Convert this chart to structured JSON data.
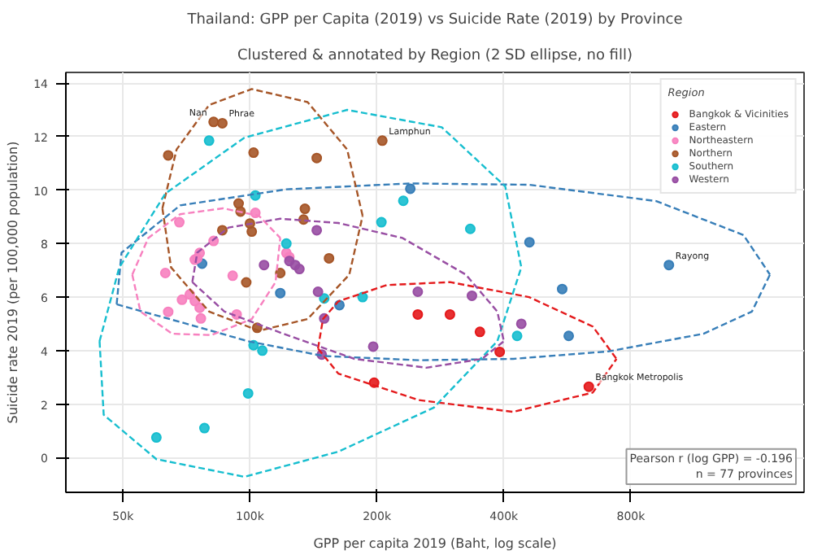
{
  "chart_data": {
    "type": "scatter",
    "marker": "circle",
    "title": "Thailand: GPP per Capita (2019) vs Suicide Rate (2019) by Province",
    "subtitle": "Clustered & annotated by Region (2 SD ellipse, no fill)",
    "xlabel": "GPP per capita 2019 (Baht, log scale)",
    "ylabel": "Suicide rate 2019 (per 100,000 population)",
    "legend_title": "Region",
    "legend": "top right",
    "grid": true,
    "log": "x",
    "xlim": [
      36600,
      2060000
    ],
    "ylim": [
      -1.3,
      14.4
    ],
    "xticks": [
      {
        "value": 50000,
        "label": "50k"
      },
      {
        "value": 100000,
        "label": "100k"
      },
      {
        "value": 200000,
        "label": "200k"
      },
      {
        "value": 400000,
        "label": "400k"
      },
      {
        "value": 800000,
        "label": "800k"
      }
    ],
    "yticks": [
      0,
      2,
      4,
      6,
      8,
      10,
      12,
      14
    ],
    "series": [
      {
        "name": "Bangkok & Vicinities",
        "color": "#e41a1c",
        "x": [
          250000,
          298000,
          351000,
          391000,
          636000,
          197000
        ],
        "values": [
          5.35,
          5.35,
          4.7,
          3.95,
          2.65,
          2.8
        ]
      },
      {
        "name": "Eastern",
        "color": "#377eb8",
        "x": [
          240000,
          460000,
          985000,
          77000,
          118000,
          163000,
          550000,
          570000
        ],
        "values": [
          10.05,
          8.05,
          7.2,
          7.25,
          6.15,
          5.7,
          6.3,
          4.55
        ]
      },
      {
        "name": "Northeastern",
        "color": "#f781bf",
        "x": [
          68000,
          63000,
          82000,
          74000,
          75000,
          76000,
          103000,
          91000,
          122000,
          124000,
          64000,
          69000,
          72000,
          74000,
          76000,
          76500,
          93000
        ],
        "values": [
          8.8,
          6.9,
          8.1,
          7.4,
          7.45,
          7.65,
          9.15,
          6.8,
          7.65,
          7.5,
          5.45,
          5.9,
          6.1,
          5.85,
          5.6,
          5.2,
          5.35
        ]
      },
      {
        "name": "Northern",
        "color": "#a65628",
        "x": [
          82000,
          86000,
          64000,
          102000,
          144000,
          206000,
          94000,
          95000,
          135000,
          134000,
          86000,
          100000,
          101000,
          154000,
          118000,
          98000,
          104000
        ],
        "values": [
          12.55,
          12.5,
          11.3,
          11.4,
          11.2,
          11.85,
          9.5,
          9.2,
          9.3,
          8.9,
          8.5,
          8.75,
          8.45,
          7.45,
          6.9,
          6.55,
          4.85
        ]
      },
      {
        "name": "Southern",
        "color": "#17becf",
        "x": [
          80000,
          103000,
          122000,
          205000,
          231000,
          333000,
          150000,
          185000,
          102000,
          107000,
          99000,
          78000,
          60000,
          430000
        ],
        "values": [
          11.85,
          9.8,
          8.0,
          8.8,
          9.6,
          8.55,
          5.95,
          6.0,
          4.2,
          4.0,
          2.4,
          1.1,
          0.75,
          4.55
        ]
      },
      {
        "name": "Western",
        "color": "#984ea3",
        "x": [
          144000,
          108000,
          124000,
          128000,
          131000,
          145000,
          150000,
          148000,
          196000,
          336000,
          440000,
          250000
        ],
        "values": [
          8.5,
          7.2,
          7.35,
          7.2,
          7.05,
          6.2,
          5.2,
          3.85,
          4.15,
          6.05,
          5.0,
          6.2
        ]
      },
      {
        "type": "line",
        "marker": "none",
        "line_style": "dashed",
        "color": "#e41a1c",
        "x": [
          145000,
          149000,
          162000,
          211000,
          298000,
          459000,
          650000,
          740000,
          null,
          145000,
          162000,
          251000,
          421000,
          650000,
          740000
        ],
        "values": [
          4.08,
          5.18,
          5.84,
          6.45,
          6.56,
          6.0,
          4.9,
          3.69,
          null,
          4.08,
          3.14,
          2.15,
          1.71,
          2.43,
          3.69
        ]
      },
      {
        "type": "line",
        "marker": "none",
        "line_style": "dashed",
        "color": "#377eb8",
        "x": [
          48300,
          49600,
          68300,
          122000,
          240000,
          459000,
          919000,
          1480000,
          1710000,
          null,
          48300,
          68300,
          99000,
          149000,
          251000,
          421000,
          708000,
          1190000,
          1550000,
          1710000
        ],
        "values": [
          5.73,
          7.66,
          9.43,
          10.03,
          10.25,
          10.2,
          9.59,
          8.32,
          6.84,
          null,
          5.73,
          5.07,
          4.35,
          3.8,
          3.64,
          3.69,
          3.97,
          4.63,
          5.46,
          6.84
        ]
      },
      {
        "type": "line",
        "marker": "none",
        "line_style": "dashed",
        "color": "#f781bf",
        "x": [
          52600,
          57400,
          68300,
          86300,
          105000,
          118000,
          null,
          52600,
          55000,
          65400,
          81000,
          101000,
          115000,
          118000
        ],
        "values": [
          6.84,
          8.21,
          9.1,
          9.32,
          9.04,
          8.21,
          null,
          6.84,
          5.46,
          4.63,
          4.58,
          5.18,
          6.56,
          8.21
        ]
      },
      {
        "type": "line",
        "marker": "none",
        "line_style": "dashed",
        "color": "#a65628",
        "x": [
          62000,
          67000,
          80000,
          101000,
          137000,
          170000,
          185000,
          null,
          62000,
          65000,
          80000,
          105000,
          137000,
          172000,
          185000
        ],
        "values": [
          9.32,
          11.52,
          13.18,
          13.78,
          13.29,
          11.52,
          9.04,
          null,
          9.32,
          7.11,
          5.46,
          4.74,
          5.18,
          6.84,
          9.04
        ]
      },
      {
        "type": "line",
        "marker": "none",
        "line_style": "dashed",
        "color": "#17becf",
        "x": [
          44000,
          49000,
          63000,
          97000,
          170000,
          285000,
          403000,
          440000,
          null,
          44000,
          45000,
          60000,
          97000,
          162000,
          273000,
          386000,
          440000
        ],
        "values": [
          4.35,
          7.11,
          9.87,
          11.96,
          13.0,
          12.35,
          10.14,
          7.11,
          null,
          4.35,
          1.6,
          -0.06,
          -0.72,
          0.22,
          1.87,
          4.35,
          7.11
        ]
      },
      {
        "type": "line",
        "marker": "none",
        "line_style": "dashed",
        "color": "#984ea3",
        "x": [
          73000,
          75000,
          89000,
          118000,
          162000,
          230000,
          325000,
          386000,
          400000,
          null,
          73000,
          87000,
          120000,
          177000,
          262000,
          355000,
          400000
        ],
        "values": [
          6.56,
          7.66,
          8.6,
          8.93,
          8.77,
          8.21,
          6.84,
          5.46,
          4.35,
          null,
          6.56,
          5.46,
          4.63,
          3.69,
          3.36,
          3.69,
          4.35
        ]
      }
    ],
    "annotations": [
      {
        "text": "Nan",
        "x": 82000,
        "y": 12.55
      },
      {
        "text": "Phrae",
        "x": 86000,
        "y": 12.5
      },
      {
        "text": "Lamphun",
        "x": 206000,
        "y": 11.85
      },
      {
        "text": "Rayong",
        "x": 985000,
        "y": 7.2
      },
      {
        "text": "Bangkok Metropolis",
        "x": 636000,
        "y": 2.65
      },
      "Pearson r (log GPP) = -0.196",
      "n = 77 provinces"
    ]
  }
}
